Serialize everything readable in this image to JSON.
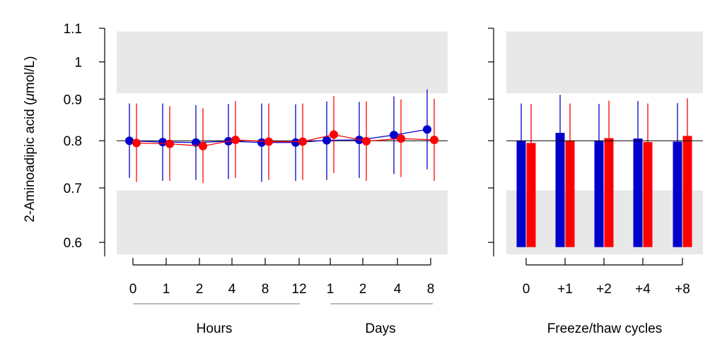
{
  "chart_data": [
    {
      "type": "line",
      "ylabel_prefix": "2-Aminoadipic acid (",
      "ylabel_mu": "μ",
      "ylabel_suffix": "mol/L)",
      "y_scale": "log",
      "ylim": [
        0.58,
        1.1
      ],
      "y_ticks": [
        "0.6",
        "0.7",
        "0.8",
        "0.9",
        "1",
        "1.1"
      ],
      "reference_line": 0.8,
      "reference_bands": [
        [
          0.58,
          0.695
        ],
        [
          0.915,
          1.09
        ]
      ],
      "groups": [
        {
          "label": "Hours",
          "tick_labels": [
            "0",
            "1",
            "2",
            "4",
            "8",
            "12"
          ]
        },
        {
          "label": "Days",
          "tick_labels": [
            "1",
            "2",
            "4",
            "8"
          ]
        }
      ],
      "series": [
        {
          "color": "#0000cc",
          "values": [
            0.8,
            0.797,
            0.796,
            0.799,
            0.796,
            0.796,
            0.801,
            0.802,
            0.813,
            0.826
          ],
          "lower": [
            0.72,
            0.714,
            0.716,
            0.718,
            0.712,
            0.714,
            0.716,
            0.72,
            0.728,
            0.738
          ],
          "upper": [
            0.889,
            0.889,
            0.885,
            0.888,
            0.889,
            0.887,
            0.894,
            0.893,
            0.907,
            0.925
          ]
        },
        {
          "color": "#ff0000",
          "values": [
            0.795,
            0.793,
            0.788,
            0.802,
            0.798,
            0.798,
            0.814,
            0.799,
            0.805,
            0.802
          ],
          "lower": [
            0.712,
            0.714,
            0.71,
            0.72,
            0.716,
            0.716,
            0.73,
            0.714,
            0.722,
            0.714
          ],
          "upper": [
            0.889,
            0.882,
            0.877,
            0.895,
            0.889,
            0.889,
            0.908,
            0.894,
            0.899,
            0.901
          ]
        }
      ]
    },
    {
      "type": "bar",
      "xlabel": "Freeze/thaw cycles",
      "y_scale": "log",
      "ylim": [
        0.58,
        1.1
      ],
      "categories": [
        "0",
        "+1",
        "+2",
        "+4",
        "+8"
      ],
      "reference_line": 0.8,
      "reference_bands": [
        [
          0.58,
          0.695
        ],
        [
          0.915,
          1.09
        ]
      ],
      "bar_baseline": 0.592,
      "series": [
        {
          "color": "#0000cc",
          "values": [
            0.8,
            0.818,
            0.8,
            0.805,
            0.798
          ],
          "upper": [
            0.889,
            0.911,
            0.888,
            0.895,
            0.89
          ]
        },
        {
          "color": "#ff0000",
          "values": [
            0.795,
            0.8,
            0.806,
            0.797,
            0.811
          ],
          "upper": [
            0.888,
            0.889,
            0.896,
            0.889,
            0.902
          ]
        }
      ]
    }
  ]
}
